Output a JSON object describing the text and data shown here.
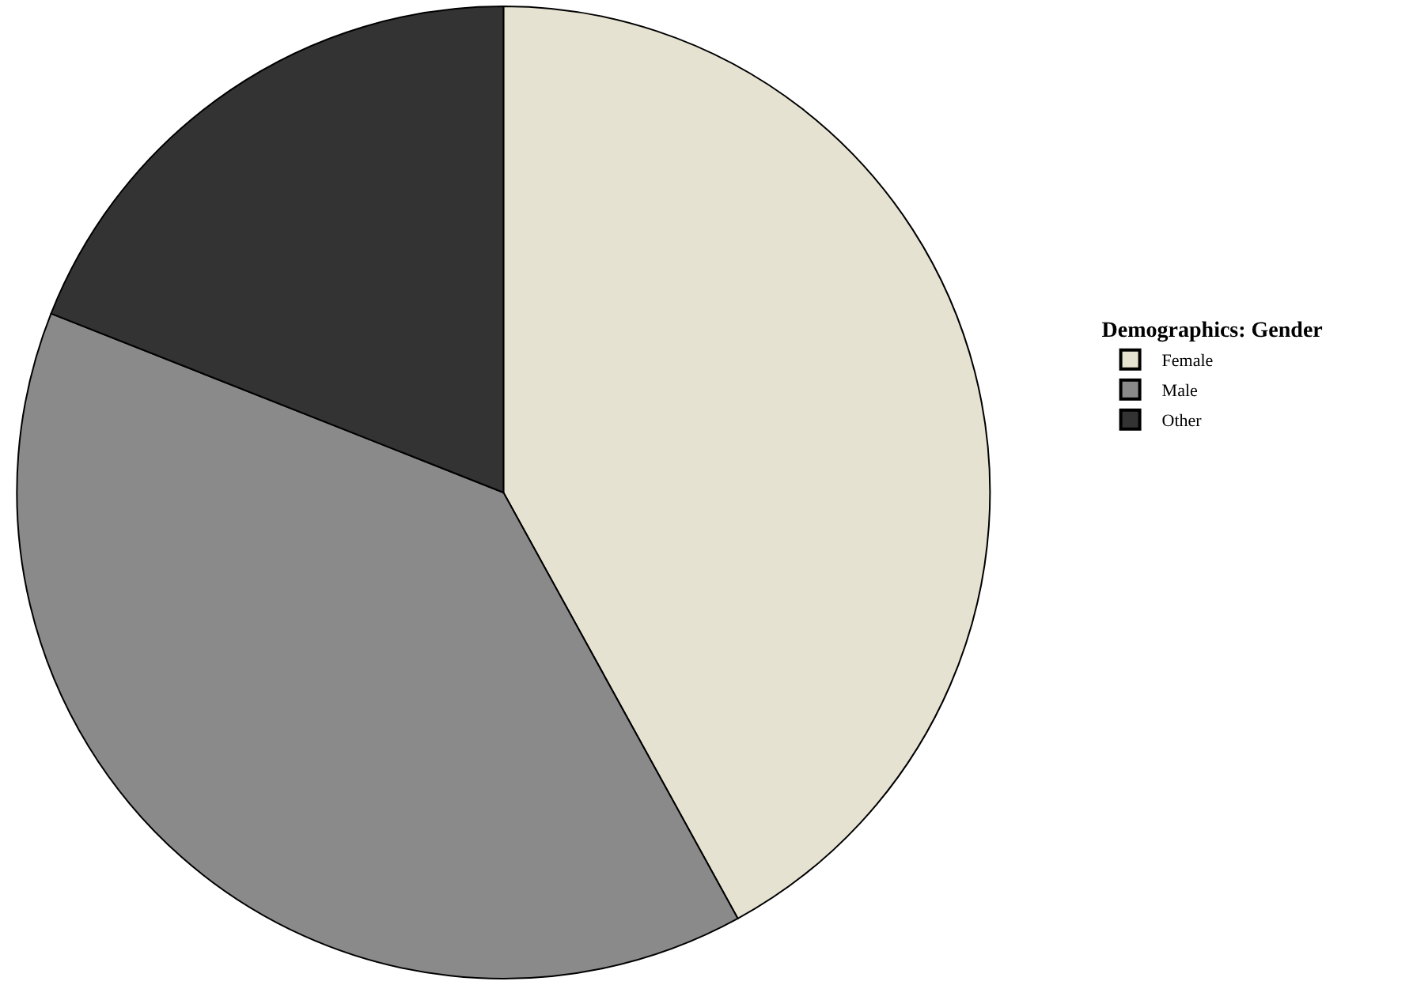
{
  "chart_data": {
    "type": "pie",
    "legend_title": "Demographics: Gender",
    "categories": [
      "Female",
      "Male",
      "Other"
    ],
    "values": [
      42,
      39,
      19
    ],
    "colors": [
      "#e6e2d2",
      "#8a8a8a",
      "#333333"
    ],
    "legend": "right"
  }
}
